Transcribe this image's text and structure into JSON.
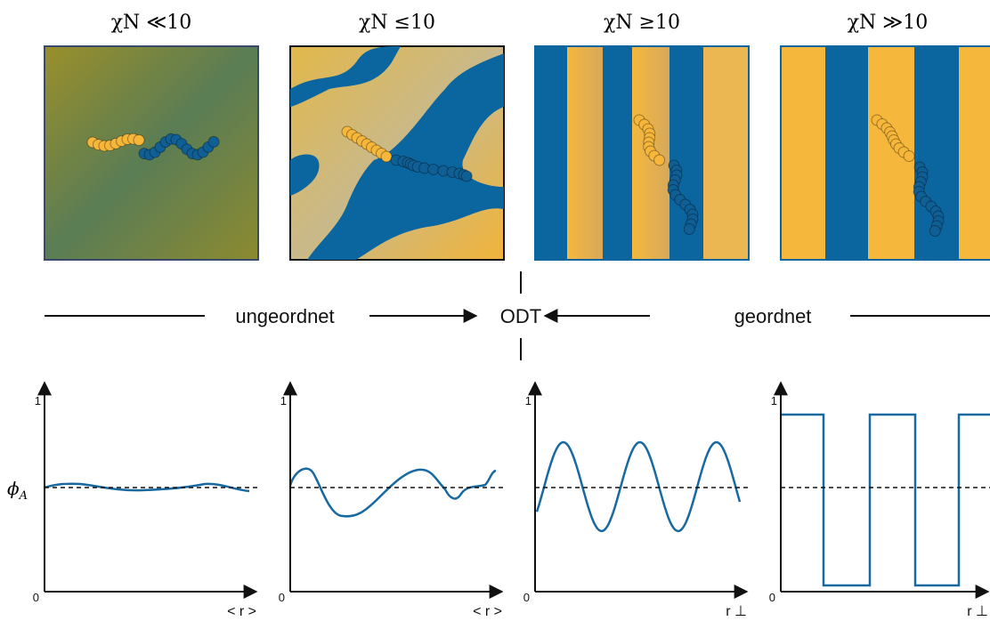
{
  "panels": [
    {
      "title": "χN ≪10",
      "plot": {
        "y_top_label": "1",
        "y_bottom_label": "0",
        "x_label": "< r >"
      }
    },
    {
      "title": "χN ≤10",
      "plot": {
        "y_top_label": "1",
        "y_bottom_label": "0",
        "x_label": "< r >"
      }
    },
    {
      "title": "χN ≥10",
      "plot": {
        "y_top_label": "1",
        "y_bottom_label": "0",
        "x_label": "r ⊥"
      }
    },
    {
      "title": "χN ≫10",
      "plot": {
        "y_top_label": "1",
        "y_bottom_label": "0",
        "x_label": "r ⊥"
      }
    }
  ],
  "phase_axis": {
    "left": "ungeordnet",
    "center": "ODT",
    "right": "geordnet"
  },
  "y_label": {
    "symbol": "ϕ",
    "subscript": "A"
  }
}
